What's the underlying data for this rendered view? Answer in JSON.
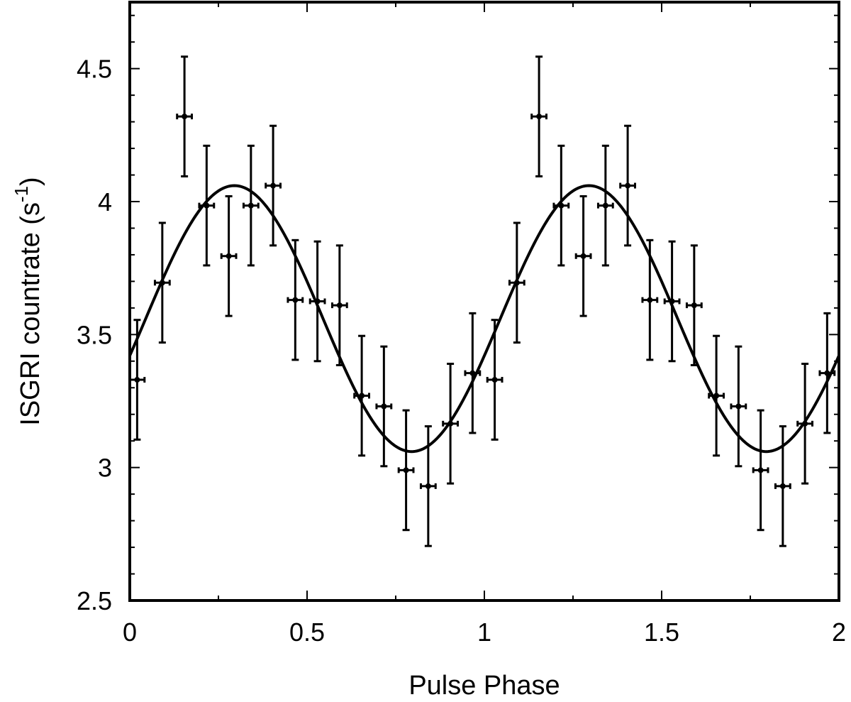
{
  "chart_data": {
    "type": "scatter",
    "xlabel": "Pulse Phase",
    "ylabel": "ISGRI countrate (s",
    "ylabel_sup": "-1",
    "ylabel_close": ")",
    "xlim": [
      0,
      2
    ],
    "ylim": [
      2.5,
      4.75
    ],
    "x_ticks": [
      0,
      0.5,
      1,
      1.5,
      2
    ],
    "x_tick_labels": [
      "0",
      "0.5",
      "1",
      "1.5",
      "2"
    ],
    "y_ticks": [
      2.5,
      3,
      3.5,
      4,
      4.5
    ],
    "y_tick_labels": [
      "2.5",
      "3",
      "3.5",
      "4",
      "4.5"
    ],
    "grid": false,
    "colors": {
      "marks": "#000000",
      "background": "#ffffff"
    },
    "series": [
      {
        "kind": "points_with_errorbars",
        "x_half_width": 0.0208,
        "points": [
          {
            "x": 0.0208,
            "y": 3.33,
            "yerr": 0.225
          },
          {
            "x": 0.0917,
            "y": 3.695,
            "yerr": 0.225
          },
          {
            "x": 0.1542,
            "y": 4.32,
            "yerr": 0.225
          },
          {
            "x": 0.2167,
            "y": 3.985,
            "yerr": 0.225
          },
          {
            "x": 0.2792,
            "y": 3.795,
            "yerr": 0.225
          },
          {
            "x": 0.3417,
            "y": 3.985,
            "yerr": 0.225
          },
          {
            "x": 0.4042,
            "y": 4.06,
            "yerr": 0.225
          },
          {
            "x": 0.4667,
            "y": 3.63,
            "yerr": 0.225
          },
          {
            "x": 0.5292,
            "y": 3.625,
            "yerr": 0.225
          },
          {
            "x": 0.5917,
            "y": 3.61,
            "yerr": 0.225
          },
          {
            "x": 0.6542,
            "y": 3.27,
            "yerr": 0.225
          },
          {
            "x": 0.7167,
            "y": 3.23,
            "yerr": 0.225
          },
          {
            "x": 0.7792,
            "y": 2.99,
            "yerr": 0.225
          },
          {
            "x": 0.8417,
            "y": 2.93,
            "yerr": 0.225
          },
          {
            "x": 0.9042,
            "y": 3.165,
            "yerr": 0.225
          },
          {
            "x": 0.9667,
            "y": 3.355,
            "yerr": 0.225
          },
          {
            "x": 1.0292,
            "y": 3.33,
            "yerr": 0.225
          },
          {
            "x": 1.0917,
            "y": 3.695,
            "yerr": 0.225
          },
          {
            "x": 1.1542,
            "y": 4.32,
            "yerr": 0.225
          },
          {
            "x": 1.2167,
            "y": 3.985,
            "yerr": 0.225
          },
          {
            "x": 1.2792,
            "y": 3.795,
            "yerr": 0.225
          },
          {
            "x": 1.3417,
            "y": 3.985,
            "yerr": 0.225
          },
          {
            "x": 1.4042,
            "y": 4.06,
            "yerr": 0.225
          },
          {
            "x": 1.4667,
            "y": 3.63,
            "yerr": 0.225
          },
          {
            "x": 1.5292,
            "y": 3.625,
            "yerr": 0.225
          },
          {
            "x": 1.5917,
            "y": 3.61,
            "yerr": 0.225
          },
          {
            "x": 1.6542,
            "y": 3.27,
            "yerr": 0.225
          },
          {
            "x": 1.7167,
            "y": 3.23,
            "yerr": 0.225
          },
          {
            "x": 1.7792,
            "y": 2.99,
            "yerr": 0.225
          },
          {
            "x": 1.8417,
            "y": 2.93,
            "yerr": 0.225
          },
          {
            "x": 1.9042,
            "y": 3.165,
            "yerr": 0.225
          },
          {
            "x": 1.9667,
            "y": 3.355,
            "yerr": 0.225
          }
        ]
      },
      {
        "kind": "sinusoid_fit",
        "mean": 3.56,
        "amplitude": 0.5,
        "period": 1.0,
        "peak_phase": 0.295
      }
    ]
  }
}
